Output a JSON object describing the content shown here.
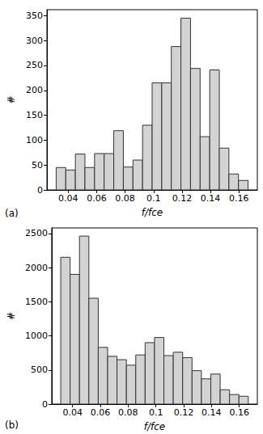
{
  "chart_data": [
    {
      "type": "histogram",
      "label": "(a)",
      "xlabel": "f/fce",
      "ylabel": "#",
      "color": "#d3d3d3",
      "bins": [
        0.0315,
        0.03825,
        0.045,
        0.05175,
        0.0585,
        0.06525,
        0.072,
        0.07875,
        0.0855,
        0.09225,
        0.099,
        0.10575,
        0.1125,
        0.11925,
        0.126,
        0.13275,
        0.1395,
        0.14625,
        0.153,
        0.15975,
        0.1665
      ],
      "values": [
        45,
        40,
        72,
        45,
        73,
        73,
        119,
        46,
        60,
        130,
        215,
        215,
        288,
        345,
        244,
        107,
        241,
        84,
        32,
        19
      ],
      "xlim": [
        0.025,
        0.173
      ],
      "xticks": [
        0.04,
        0.06,
        0.08,
        0.1,
        0.12,
        0.14,
        0.16
      ],
      "ylim": [
        0,
        362
      ],
      "yticks": [
        0,
        50,
        100,
        150,
        200,
        250,
        300,
        350
      ]
    },
    {
      "type": "histogram",
      "label": "(b)",
      "xlabel": "f/fce",
      "ylabel": "#",
      "color": "#d3d3d3",
      "bins": [
        0.0315,
        0.03825,
        0.045,
        0.05175,
        0.0585,
        0.06525,
        0.072,
        0.07875,
        0.0855,
        0.09225,
        0.099,
        0.10575,
        0.1125,
        0.11925,
        0.126,
        0.13275,
        0.1395,
        0.14625,
        0.153,
        0.15975,
        0.1665
      ],
      "values": [
        2150,
        1900,
        2460,
        1550,
        830,
        700,
        650,
        570,
        720,
        900,
        975,
        710,
        760,
        680,
        490,
        370,
        440,
        210,
        140,
        115
      ],
      "xlim": [
        0.025,
        0.173
      ],
      "xticks": [
        0.04,
        0.06,
        0.08,
        0.1,
        0.12,
        0.14,
        0.16
      ],
      "ylim": [
        0,
        2580
      ],
      "yticks": [
        0,
        500,
        1000,
        1500,
        2000,
        2500
      ]
    }
  ]
}
